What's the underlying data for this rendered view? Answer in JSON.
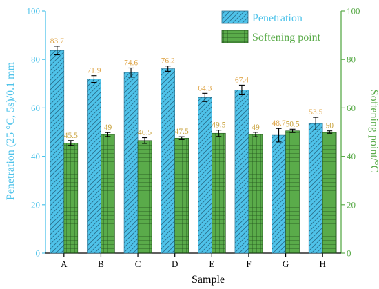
{
  "chart_data": {
    "type": "bar",
    "categories": [
      "A",
      "B",
      "C",
      "D",
      "E",
      "F",
      "G",
      "H"
    ],
    "series": [
      {
        "name": "Penetration",
        "axis": "left",
        "color": "#4fc3ea",
        "pattern": "diagonal-hatch",
        "values": [
          83.7,
          71.9,
          74.6,
          76.2,
          64.3,
          67.4,
          48.7,
          53.5
        ],
        "errors": [
          1.8,
          1.4,
          1.9,
          1.1,
          1.7,
          2.0,
          2.8,
          2.6
        ],
        "labels": [
          "83.7",
          "71.9",
          "74.6",
          "76.2",
          "64.3",
          "67.4",
          "48.7",
          "53.5"
        ]
      },
      {
        "name": "Softening point",
        "axis": "right",
        "color": "#5aab4a",
        "pattern": "grid",
        "values": [
          45.5,
          49,
          46.5,
          47.5,
          49.5,
          49,
          50.5,
          50
        ],
        "errors": [
          1.0,
          0.8,
          1.2,
          0.6,
          1.3,
          0.9,
          0.7,
          0.5
        ],
        "labels": [
          "45.5",
          "49",
          "46.5",
          "47.5",
          "49.5",
          "49",
          "50.5",
          "50"
        ]
      }
    ],
    "xlabel": "Sample",
    "ylabel_left": "Penetration (25 °C, 5s)/0.1 mm",
    "ylabel_right": "Softening point/°C",
    "ylim_left": [
      0,
      100
    ],
    "ylim_right": [
      0,
      100
    ],
    "yticks_left": [
      "0",
      "20",
      "40",
      "60",
      "80",
      "100"
    ],
    "yticks_right": [
      "0",
      "20",
      "40",
      "60",
      "80",
      "100"
    ],
    "grid": false,
    "legend_position": "top-right",
    "label_colors": {
      "penetration": "#e0a84e",
      "softening": "#c9a23b"
    },
    "axis_colors": {
      "left": "#4fc3ea",
      "right": "#5aab4a",
      "bottom": "#000000"
    }
  }
}
